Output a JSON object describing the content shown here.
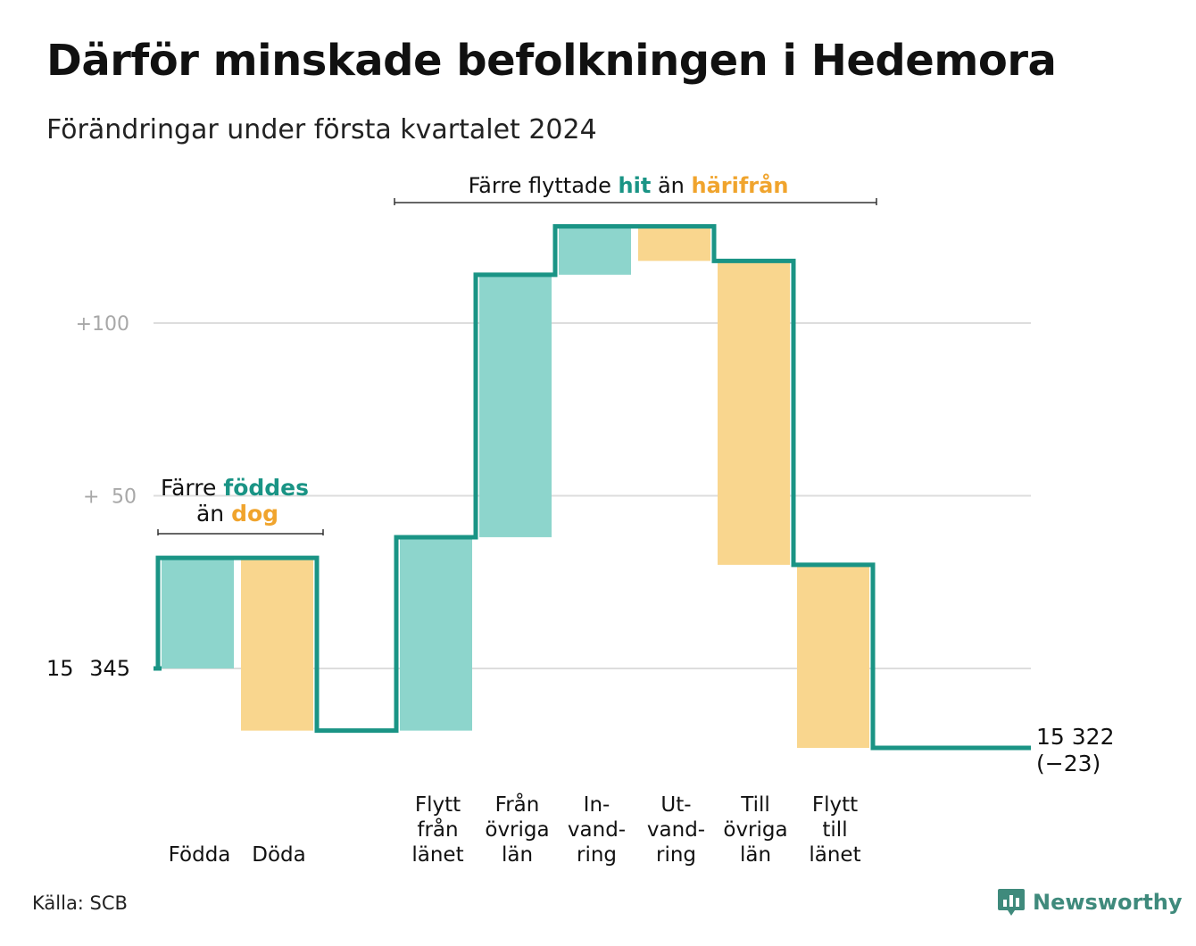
{
  "title": "Därför minskade befolkningen i Hedemora",
  "subtitle": "Förändringar under första kvartalet 2024",
  "source": "Källa: SCB",
  "logo": {
    "text": "Newsworthy",
    "icon": "newsworthy-chart-bubble-icon"
  },
  "colors": {
    "increase_line": "#1a9485",
    "increase_fill": "#8dd5cc",
    "decrease_fill": "#f9d68e",
    "decrease_text": "#f0a42d",
    "grid": "#dddddd"
  },
  "annotations": {
    "births": {
      "line1_prefix": "Färre",
      "line1_highlight": "föddes",
      "line2_prefix": "än",
      "line2_highlight": "dog"
    },
    "migration": {
      "prefix": "Färre flyttade",
      "highlight1": "hit",
      "middle": "än",
      "highlight2": "härifrån"
    }
  },
  "chart_data": {
    "type": "waterfall",
    "start_label": [
      "15",
      "345"
    ],
    "start_value": 15345,
    "end_value": 15322,
    "end_label": [
      "15 322",
      "(−23)"
    ],
    "y_tick_labels": [
      [
        "+",
        "50"
      ],
      [
        "+100"
      ]
    ],
    "y_ticks_relative": [
      0,
      50,
      100
    ],
    "categories": [
      {
        "label": [
          "Födda"
        ],
        "delta": 32
      },
      {
        "label": [
          "Döda"
        ],
        "delta": -50
      },
      {
        "label": [],
        "delta": 0
      },
      {
        "label": [
          "Flytt",
          "från",
          "länet"
        ],
        "delta": 56
      },
      {
        "label": [
          "Från",
          "övriga",
          "län"
        ],
        "delta": 76
      },
      {
        "label": [
          "In-",
          "vand-",
          "ring"
        ],
        "delta": 14
      },
      {
        "label": [
          "Ut-",
          "vand-",
          "ring"
        ],
        "delta": -10
      },
      {
        "label": [
          "Till",
          "övriga",
          "län"
        ],
        "delta": -88
      },
      {
        "label": [
          "Flytt",
          "till",
          "länet"
        ],
        "delta": -53
      },
      {
        "label": [],
        "delta": 0
      }
    ]
  }
}
